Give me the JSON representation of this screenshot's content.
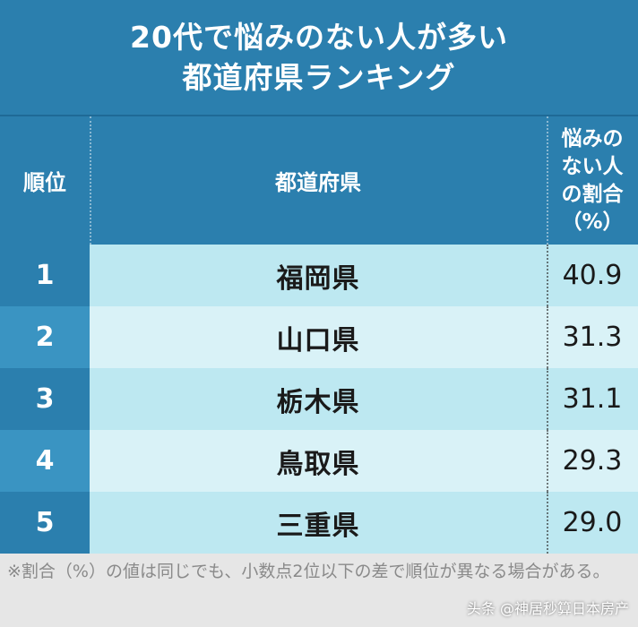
{
  "title": {
    "line1": "20代で悩みのない人が多い",
    "line2": "都道府県ランキング"
  },
  "header": {
    "rank": "順位",
    "prefecture": "都道府県",
    "rate_line1": "悩みの",
    "rate_line2": "ない人",
    "rate_line3": "の割合",
    "rate_line4": "（%）"
  },
  "chart_data": {
    "type": "table",
    "columns": [
      "順位",
      "都道府県",
      "悩みのない人の割合（%）"
    ],
    "rows": [
      {
        "rank": "1",
        "prefecture": "福岡県",
        "value": "40.9"
      },
      {
        "rank": "2",
        "prefecture": "山口県",
        "value": "31.3"
      },
      {
        "rank": "3",
        "prefecture": "栃木県",
        "value": "31.1"
      },
      {
        "rank": "4",
        "prefecture": "鳥取県",
        "value": "29.3"
      },
      {
        "rank": "5",
        "prefecture": "三重県",
        "value": "29.0"
      }
    ]
  },
  "note": "※割合（%）の値は同じでも、小数点2位以下の差で順位が異なる場合がある。",
  "watermark": "头条 @神居秒算日本房产",
  "colors": {
    "header_bg": "#2b7fae",
    "rank_alt_bg": "#3a94c2",
    "row_odd_bg": "#bde8f1",
    "row_even_bg": "#d9f2f7"
  }
}
